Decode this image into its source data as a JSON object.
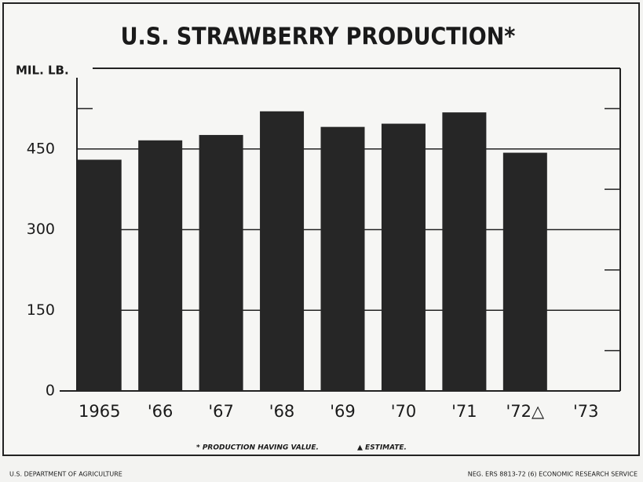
{
  "chart_data": {
    "type": "bar",
    "title": "U.S. STRAWBERRY PRODUCTION*",
    "y_label": "MIL. LB.",
    "categories": [
      "1965",
      "'66",
      "'67",
      "'68",
      "'69",
      "'70",
      "'71",
      "'72△",
      "'73"
    ],
    "values": [
      430,
      466,
      476,
      520,
      491,
      497,
      518,
      443,
      null
    ],
    "color": "#262626",
    "ylim": [
      0,
      600
    ],
    "yticks": [
      0,
      150,
      300,
      450
    ],
    "minor_yticks": [
      75,
      225,
      375,
      525
    ],
    "grid": true,
    "notes": [
      "* PRODUCTION HAVING VALUE.",
      "▲ ESTIMATE."
    ]
  },
  "footer": {
    "left": "U.S. DEPARTMENT OF AGRICULTURE",
    "right": "NEG. ERS 8813-72 (6)   ECONOMIC RESEARCH SERVICE"
  }
}
